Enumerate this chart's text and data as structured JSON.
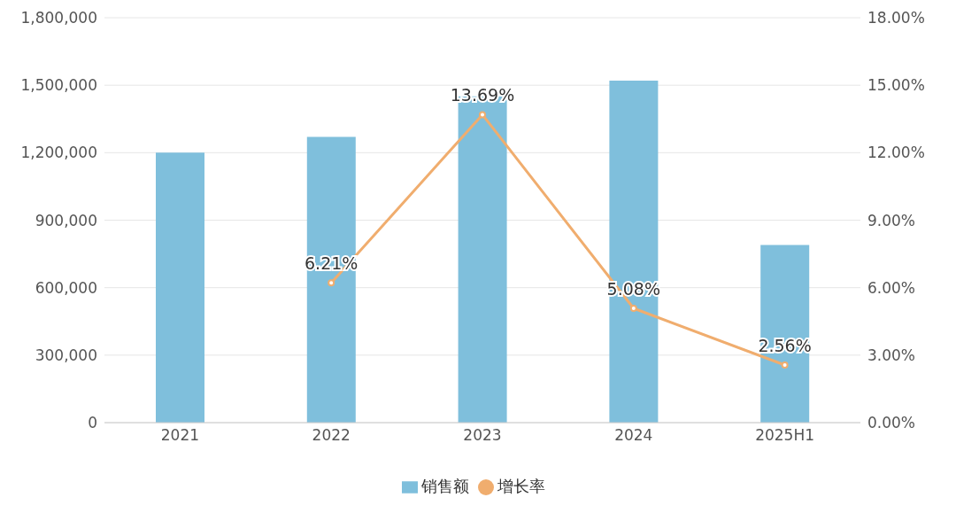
{
  "chart_data": {
    "type": "bar",
    "categories": [
      "2021",
      "2022",
      "2023",
      "2024",
      "2025H1"
    ],
    "series": [
      {
        "name": "销售额",
        "color": "#7fbfdc",
        "values": [
          1200000,
          1270000,
          1450000,
          1520000,
          790000
        ]
      },
      {
        "name": "增长率",
        "type": "line",
        "axis": "y2",
        "color": "#f0ad6e",
        "values": [
          null,
          6.21,
          13.69,
          5.08,
          2.56
        ],
        "value_labels": [
          null,
          "6.21%",
          "13.69%",
          "5.08%",
          "2.56%"
        ]
      }
    ],
    "ylim": [
      0,
      1800000
    ],
    "yticks": [
      {
        "value": 0,
        "label": "0"
      },
      {
        "value": 300000,
        "label": "300,000"
      },
      {
        "value": 600000,
        "label": "600,000"
      },
      {
        "value": 900000,
        "label": "900,000"
      },
      {
        "value": 1200000,
        "label": "1,200,000"
      },
      {
        "value": 1500000,
        "label": "1,500,000"
      },
      {
        "value": 1800000,
        "label": "1,800,000"
      }
    ],
    "y2lim": [
      0,
      18
    ],
    "y2ticks": [
      {
        "value": 0,
        "label": "0.00%"
      },
      {
        "value": 3,
        "label": "3.00%"
      },
      {
        "value": 6,
        "label": "6.00%"
      },
      {
        "value": 9,
        "label": "9.00%"
      },
      {
        "value": 12,
        "label": "12.00%"
      },
      {
        "value": 15,
        "label": "15.00%"
      },
      {
        "value": 18,
        "label": "18.00%"
      }
    ],
    "grid": "y",
    "legend": "bottom",
    "marker": "circle"
  }
}
